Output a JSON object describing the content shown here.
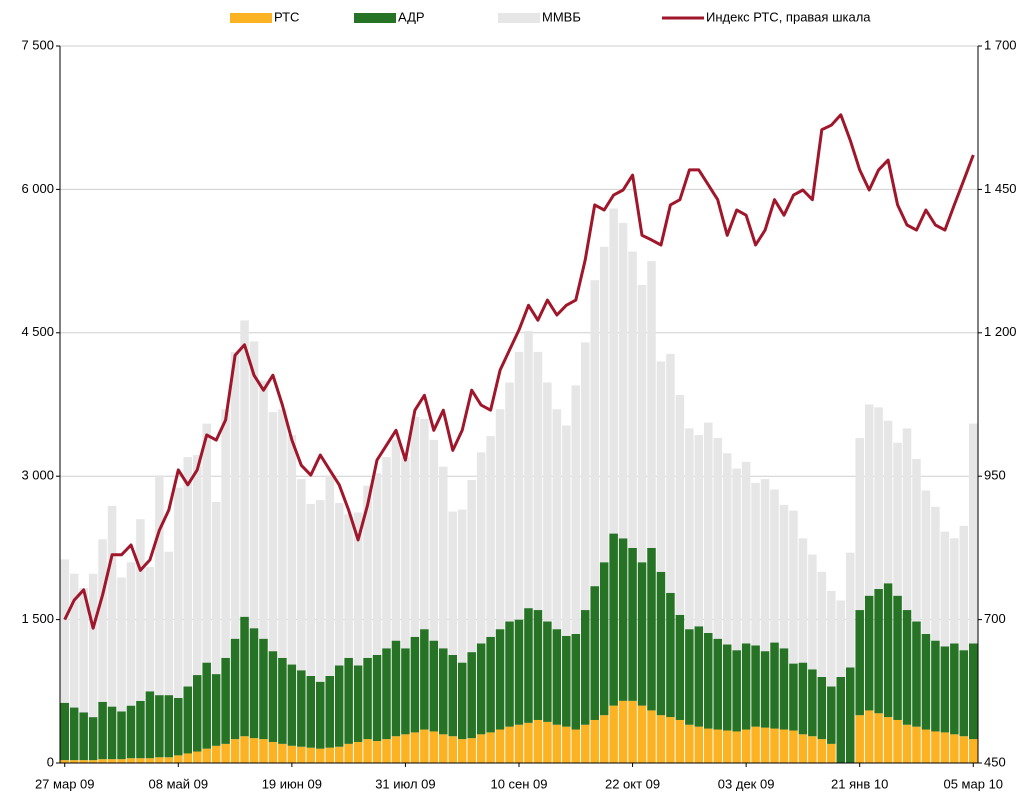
{
  "chart_data": {
    "type": "bar",
    "stacked": true,
    "categories": [
      "27 мар 09",
      null,
      null,
      null,
      null,
      null,
      null,
      null,
      null,
      null,
      null,
      null,
      "08 май 09",
      null,
      null,
      null,
      null,
      null,
      null,
      null,
      null,
      null,
      null,
      null,
      "19 июн 09",
      null,
      null,
      null,
      null,
      null,
      null,
      null,
      null,
      null,
      null,
      null,
      "31 июл 09",
      null,
      null,
      null,
      null,
      null,
      null,
      null,
      null,
      null,
      null,
      null,
      "10 сен 09",
      null,
      null,
      null,
      null,
      null,
      null,
      null,
      null,
      null,
      null,
      null,
      "22 окт 09",
      null,
      null,
      null,
      null,
      null,
      null,
      null,
      null,
      null,
      null,
      null,
      "03 дек 09",
      null,
      null,
      null,
      null,
      null,
      null,
      null,
      null,
      null,
      null,
      null,
      "21 янв 10",
      null,
      null,
      null,
      null,
      null,
      null,
      null,
      null,
      null,
      null,
      null,
      "05 мар 10"
    ],
    "series": [
      {
        "name": "РТС",
        "color": "#fbb324",
        "values": [
          30,
          30,
          30,
          30,
          40,
          40,
          40,
          50,
          50,
          50,
          60,
          60,
          80,
          100,
          120,
          150,
          180,
          200,
          250,
          280,
          260,
          250,
          220,
          200,
          180,
          170,
          160,
          150,
          160,
          170,
          200,
          220,
          250,
          230,
          250,
          280,
          300,
          320,
          350,
          330,
          300,
          280,
          250,
          260,
          300,
          320,
          350,
          380,
          400,
          420,
          450,
          430,
          400,
          380,
          350,
          400,
          450,
          500,
          600,
          650,
          650,
          600,
          550,
          500,
          480,
          450,
          400,
          380,
          360,
          350,
          340,
          330,
          350,
          380,
          370,
          360,
          350,
          340,
          300,
          280,
          250,
          200,
          0,
          0,
          500,
          550,
          520,
          480,
          450,
          400,
          380,
          350,
          330,
          320,
          300,
          280,
          250
        ]
      },
      {
        "name": "АДР",
        "color": "#267325",
        "values": [
          600,
          550,
          500,
          450,
          600,
          550,
          500,
          550,
          600,
          700,
          650,
          650,
          600,
          700,
          800,
          900,
          750,
          900,
          1050,
          1250,
          1150,
          1050,
          950,
          900,
          850,
          800,
          750,
          700,
          750,
          850,
          900,
          800,
          850,
          900,
          950,
          1000,
          900,
          1000,
          1050,
          950,
          900,
          850,
          800,
          900,
          950,
          1000,
          1050,
          1100,
          1100,
          1200,
          1150,
          1050,
          1000,
          950,
          1000,
          1200,
          1400,
          1600,
          1800,
          1700,
          1600,
          1500,
          1700,
          1500,
          1300,
          1100,
          1000,
          1050,
          1000,
          950,
          900,
          850,
          900,
          850,
          800,
          900,
          850,
          700,
          750,
          700,
          650,
          600,
          900,
          1000,
          1100,
          1200,
          1300,
          1400,
          1300,
          1200,
          1100,
          1000,
          950,
          900,
          950,
          900,
          1000
        ]
      },
      {
        "name": "ММВБ",
        "color": "#e6e6e6",
        "values": [
          1500,
          1400,
          1300,
          1500,
          1700,
          2100,
          1400,
          1500,
          1900,
          1300,
          2300,
          1500,
          2200,
          2400,
          2300,
          2500,
          1800,
          2600,
          3000,
          3100,
          3000,
          2700,
          2500,
          2600,
          2400,
          2000,
          1800,
          1900,
          2100,
          1700,
          1500,
          1600,
          1800,
          1900,
          2000,
          2100,
          2000,
          2300,
          2200,
          2100,
          1900,
          1500,
          1600,
          1800,
          2000,
          2100,
          2300,
          2500,
          2800,
          2900,
          2700,
          2500,
          2300,
          2200,
          2600,
          2800,
          3200,
          3300,
          3400,
          3300,
          3100,
          2900,
          3000,
          2200,
          2500,
          2300,
          2100,
          2000,
          2200,
          2100,
          2000,
          1900,
          1900,
          1700,
          1800,
          1600,
          1500,
          1600,
          1300,
          1200,
          1100,
          1000,
          800,
          1200,
          1800,
          2000,
          1900,
          1700,
          1600,
          1900,
          1700,
          1500,
          1400,
          1200,
          1100,
          1300,
          2300
        ]
      },
      {
        "name": "Индекс РТС, правая шкала",
        "color": "#a0162b",
        "type": "line",
        "axis": "y2",
        "values": [
          700,
          734,
          752,
          685,
          743,
          813,
          813,
          830,
          786,
          804,
          856,
          891,
          961,
          935,
          961,
          1022,
          1013,
          1048,
          1161,
          1179,
          1126,
          1100,
          1126,
          1074,
          1013,
          969,
          952,
          987,
          961,
          935,
          891,
          839,
          900,
          978,
          1004,
          1030,
          978,
          1065,
          1091,
          1030,
          1065,
          995,
          1030,
          1100,
          1074,
          1065,
          1135,
          1170,
          1205,
          1248,
          1222,
          1257,
          1231,
          1248,
          1257,
          1327,
          1423,
          1414,
          1440,
          1449,
          1475,
          1370,
          1362,
          1353,
          1423,
          1432,
          1484,
          1484,
          1458,
          1432,
          1370,
          1414,
          1405,
          1353,
          1379,
          1432,
          1405,
          1440,
          1449,
          1432,
          1554,
          1562,
          1580,
          1536,
          1484,
          1449,
          1484,
          1501,
          1423,
          1388,
          1379,
          1414,
          1388,
          1379,
          1423,
          1466,
          1510
        ]
      }
    ],
    "ylim": [
      0,
      7500
    ],
    "yticks": [
      0,
      {
        "value": 1500,
        "label": "1 500"
      },
      {
        "value": 3000,
        "label": "3 000"
      },
      {
        "value": 4500,
        "label": "4 500"
      },
      {
        "value": 6000,
        "label": "6 000"
      },
      {
        "value": 7500,
        "label": "7 500"
      }
    ],
    "y2lim": [
      450,
      1700
    ],
    "y2ticks": [
      450,
      700,
      950,
      {
        "value": 1200,
        "label": "1 200"
      },
      {
        "value": 1450,
        "label": "1 450"
      },
      {
        "value": 1700,
        "label": "1 700"
      }
    ],
    "grid": true,
    "legend": "top"
  }
}
